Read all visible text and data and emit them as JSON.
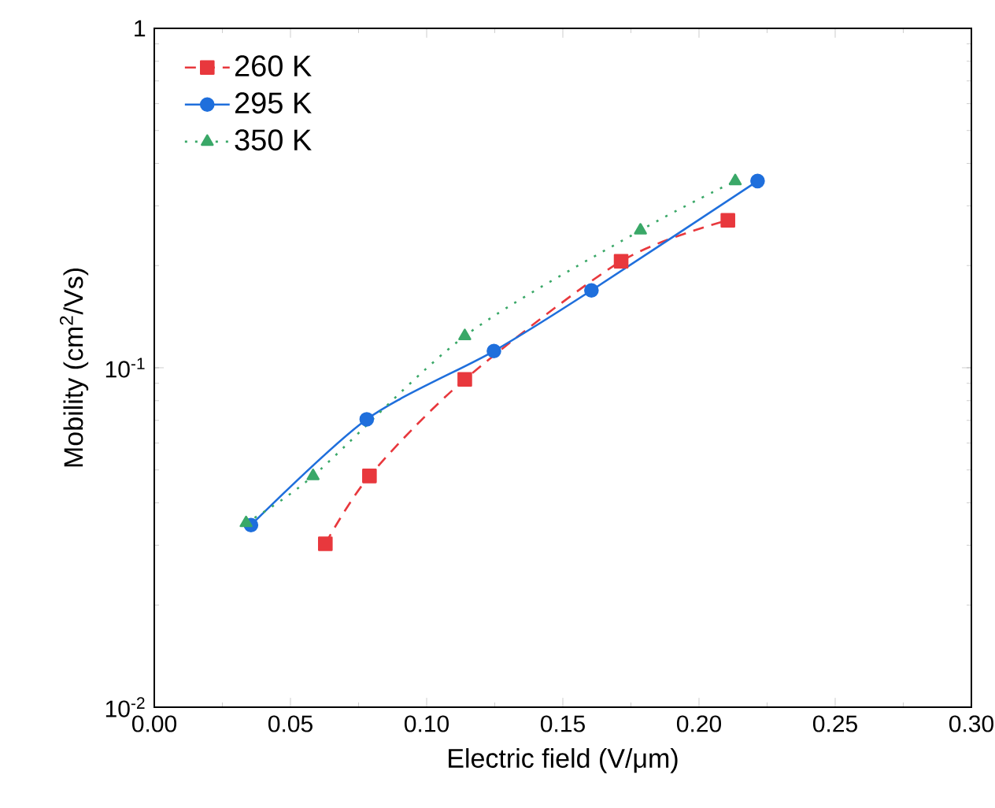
{
  "chart_data": {
    "type": "line",
    "xlabel": "Electric field (V/μm)",
    "ylabel": "Mobility (cm$^{2}$/Vs)",
    "log": "y",
    "xlim": [
      0,
      0.3
    ],
    "xticks": [
      {
        "value": 0,
        "label": "0.00"
      },
      {
        "value": 0.05,
        "label": "0.05"
      },
      {
        "value": 0.1,
        "label": "0.10"
      },
      {
        "value": 0.15,
        "label": "0.15"
      },
      {
        "value": 0.2,
        "label": "0.20"
      },
      {
        "value": 0.25,
        "label": "0.25"
      },
      {
        "value": 0.3,
        "label": "0.30"
      }
    ],
    "ylim": [
      0.01,
      1
    ],
    "yticks": [
      {
        "value": 0.01,
        "label": "10$^{-2}$"
      },
      {
        "value": 0.1,
        "label": "10$^{-1}$"
      },
      1
    ],
    "legend": "top left",
    "grid": false,
    "series": [
      {
        "name": "260 K",
        "color": "#e8383d",
        "marker": "square",
        "line_style": "dashed",
        "x": [
          0.0628,
          0.079,
          0.114,
          0.1714,
          0.2106
        ],
        "values": [
          0.0303,
          0.048,
          0.0924,
          0.206,
          0.272
        ]
      },
      {
        "name": "295 K",
        "color": "#1f6fdc",
        "marker": "circle",
        "line_style": "solid",
        "x": [
          0.0355,
          0.078,
          0.1247,
          0.1605,
          0.2215
        ],
        "values": [
          0.0344,
          0.0705,
          0.112,
          0.169,
          0.355
        ]
      },
      {
        "name": "350 K",
        "color": "#3aa868",
        "marker": "triangle",
        "line_style": "dotted",
        "x": [
          0.0337,
          0.0583,
          0.114,
          0.1785,
          0.2133
        ],
        "values": [
          0.0349,
          0.048,
          0.124,
          0.254,
          0.355
        ]
      }
    ]
  }
}
